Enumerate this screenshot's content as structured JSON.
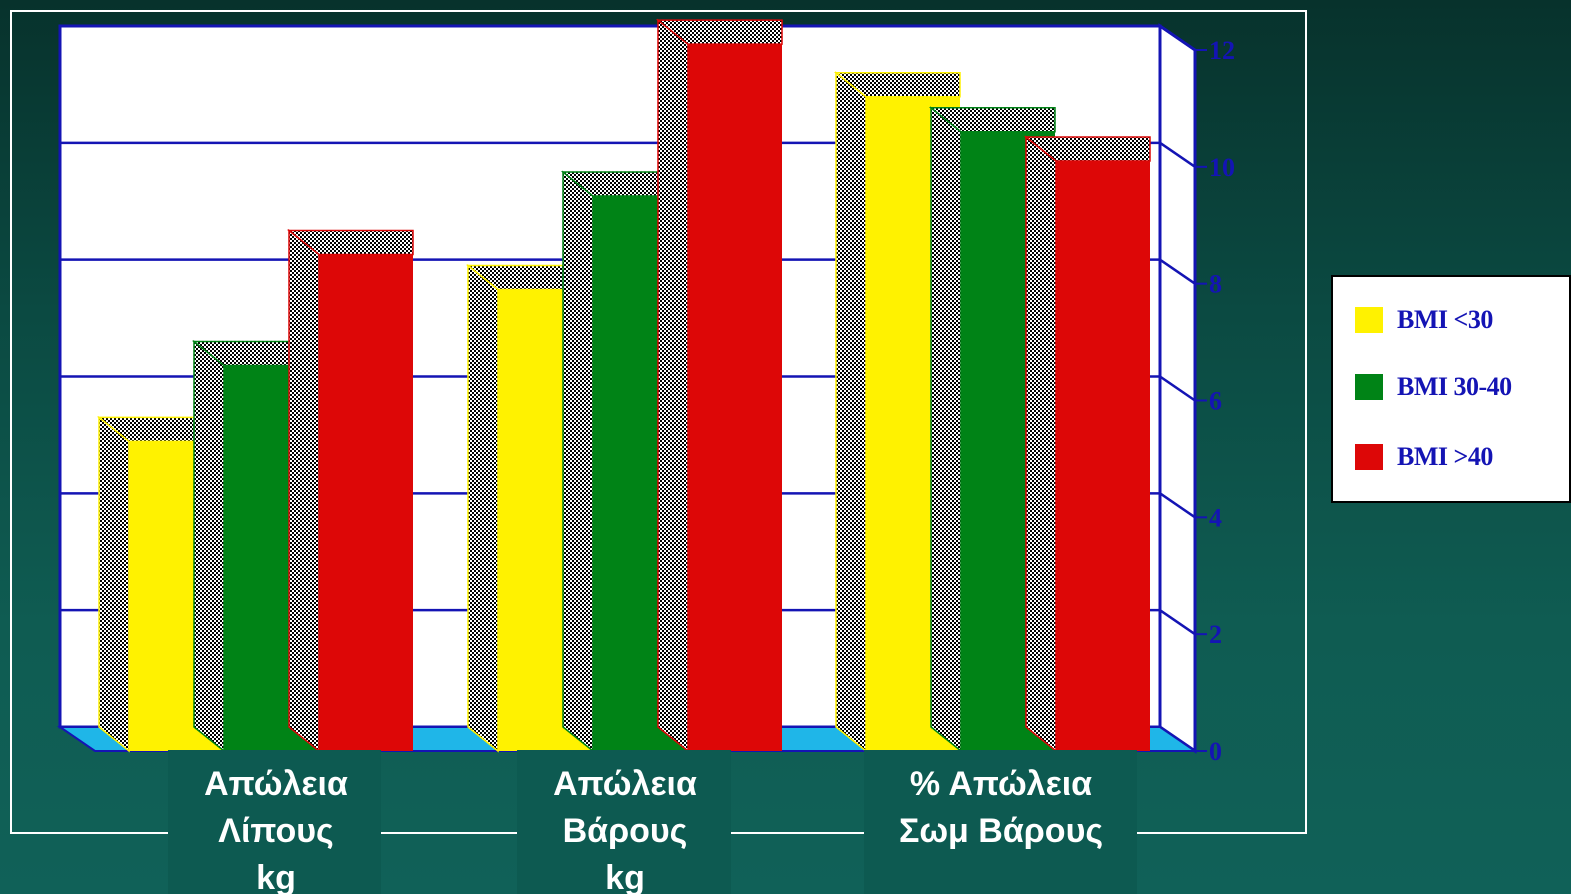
{
  "chart_data": {
    "type": "bar",
    "categories": [
      "Απώλεια Λίπους kg",
      "Απώλεια Βάρους kg",
      "% Απώλεια Σωμ Βάρους"
    ],
    "category_lines": [
      [
        "Απώλεια",
        "Λίπους",
        "kg"
      ],
      [
        "Απώλεια",
        "Βάρους",
        "kg"
      ],
      [
        "% Απώλεια",
        "Σωμ Βάρους"
      ]
    ],
    "series": [
      {
        "name": "BMI <30",
        "values": [
          5.3,
          7.9,
          11.2
        ],
        "color": "#fff200"
      },
      {
        "name": "BMI 30-40",
        "values": [
          6.6,
          9.5,
          10.6
        ],
        "color": "#008316"
      },
      {
        "name": "BMI >40",
        "values": [
          8.5,
          12.1,
          10.1
        ],
        "color": "#dd0707"
      }
    ],
    "yticks": [
      0,
      2,
      4,
      6,
      8,
      10,
      12
    ],
    "ylim": [
      0,
      12
    ],
    "grid": true,
    "legend_position": "right",
    "xlabel": "",
    "ylabel": "",
    "title": ""
  },
  "colors": {
    "axis": "#1414b4",
    "plot_background": "#ffffff",
    "floor": "#1fb6e8",
    "shadow": "#000000"
  }
}
